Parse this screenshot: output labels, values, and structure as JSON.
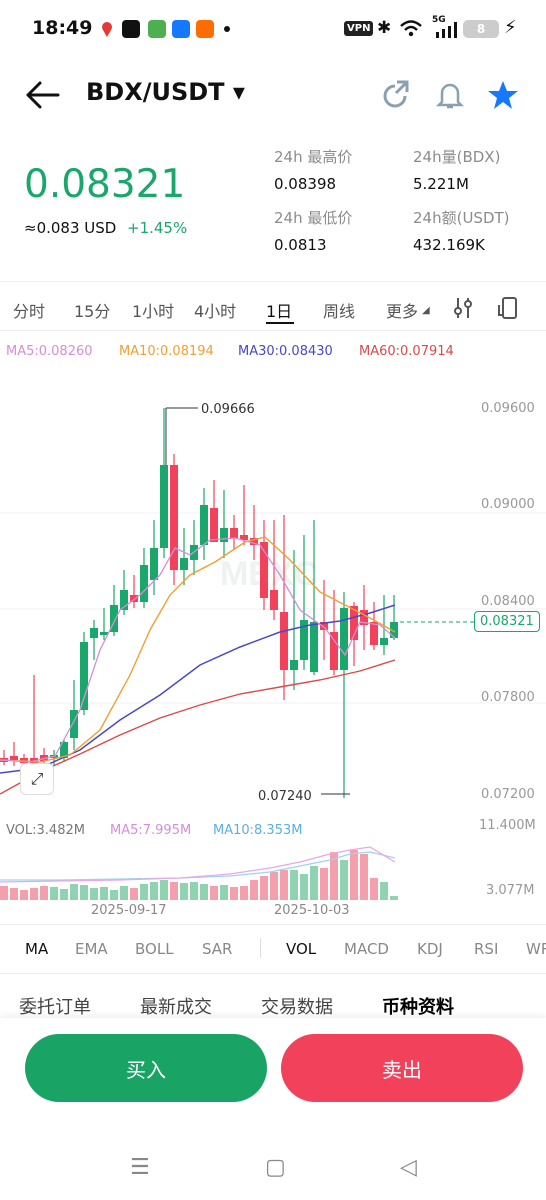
{
  "status_bar": {
    "time": "18:49",
    "vpn": "VPN",
    "net": "5G",
    "battery": "8"
  },
  "header": {
    "pair": "BDX/USDT ▾"
  },
  "ticker": {
    "last_price": "0.08321",
    "usd_value": "≈0.083 USD",
    "change": "+1.45%",
    "high_label": "24h 最高价",
    "high_value": "0.08398",
    "low_label": "24h 最低价",
    "low_value": "0.0813",
    "vol_label": "24h量(BDX)",
    "vol_value": "5.221M",
    "amount_label": "24h额(USDT)",
    "amount_value": "432.169K"
  },
  "timeframes": [
    "分时",
    "15分",
    "1小时",
    "4小时",
    "1日",
    "周线",
    "更多"
  ],
  "active_timeframe": "1日",
  "ma_legend": {
    "ma5": "MA5:0.08260",
    "ma10": "MA10:0.08194",
    "ma30": "MA30:0.08430",
    "ma60": "MA60:0.07914"
  },
  "chart": {
    "price_axis": [
      "0.09600",
      "0.09000",
      "0.08400",
      "0.07800",
      "0.07200"
    ],
    "current_price_tag": "0.08321",
    "high_marker": "0.09666",
    "low_marker": "0.07240",
    "watermark": "MEXC"
  },
  "volume": {
    "vol": "VOL:3.482M",
    "ma5": "MA5:7.995M",
    "ma10": "MA10:8.353M",
    "top_axis": "11.400M",
    "bottom_axis": "3.077M",
    "dates": [
      "2025-09-17",
      "2025-10-03"
    ]
  },
  "indicators": [
    "MA",
    "EMA",
    "BOLL",
    "SAR",
    "VOL",
    "MACD",
    "KDJ",
    "RSI",
    "WR"
  ],
  "section_tabs": [
    "委托订单",
    "最新成交",
    "交易数据",
    "币种资料"
  ],
  "actions": {
    "buy": "买入",
    "sell": "卖出"
  },
  "nav": {
    "menu": "☰",
    "home": "▢",
    "back": "◁"
  },
  "colors": {
    "green": "#1aa76b",
    "red": "#f2415a",
    "ma5": "#d48fd8",
    "ma10": "#f0a033",
    "ma30": "#4848c8",
    "ma60": "#d94a4a"
  }
}
